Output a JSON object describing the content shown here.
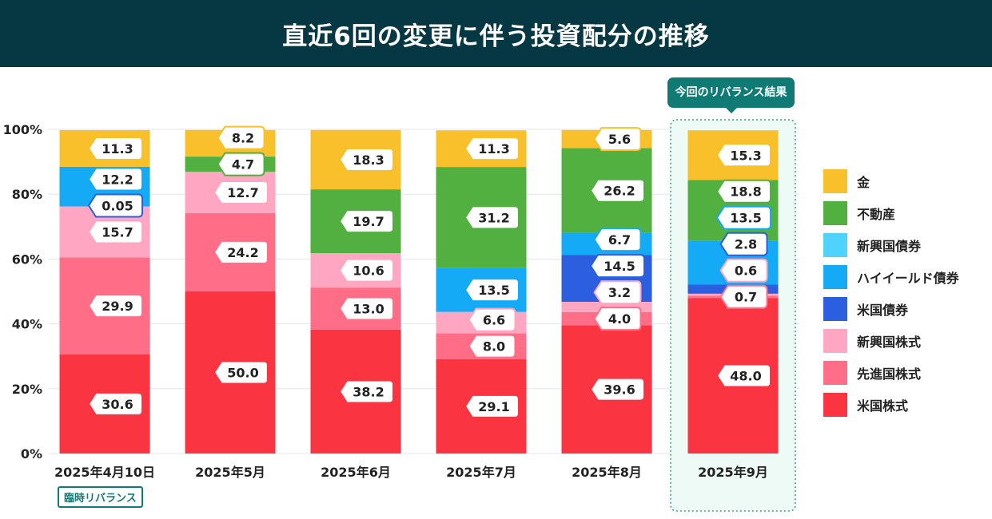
{
  "title": "直近6回の変更に伴う投資配分の推移",
  "highlight_label": "今回のリバランス結果",
  "temp_badge": "臨時リバランス",
  "chart_data": {
    "type": "bar",
    "stacked": true,
    "title": "直近6回の変更に伴う投資配分の推移",
    "categories": [
      "2025年4月10日",
      "2025年5月",
      "2025年6月",
      "2025年7月",
      "2025年8月",
      "2025年9月"
    ],
    "y_ticks": [
      "0%",
      "20%",
      "40%",
      "60%",
      "80%",
      "100%"
    ],
    "ylim": [
      0,
      100
    ],
    "grid": true,
    "legend_position": "right",
    "series": [
      {
        "name": "米国株式",
        "color": "#fa3441",
        "values": [
          30.6,
          50.0,
          38.2,
          29.1,
          39.6,
          48.0
        ],
        "labels": [
          "30.6",
          "50.0",
          "38.2",
          "29.1",
          "39.6",
          "48.0"
        ]
      },
      {
        "name": "先進国株式",
        "color": "#ff6e86",
        "values": [
          29.9,
          24.2,
          13.0,
          8.0,
          4.0,
          0.7
        ],
        "labels": [
          "29.9",
          "24.2",
          "13.0",
          "8.0",
          "4.0",
          "0.7"
        ]
      },
      {
        "name": "新興国株式",
        "color": "#ffa6c2",
        "values": [
          15.7,
          12.7,
          10.6,
          6.6,
          3.2,
          0.6
        ],
        "labels": [
          "15.7",
          "12.7",
          "10.6",
          "6.6",
          "3.2",
          "0.6"
        ]
      },
      {
        "name": "米国債券",
        "color": "#2b5fe0",
        "values": [
          0.05,
          0,
          0,
          0,
          14.5,
          2.8
        ],
        "labels": [
          "0.05",
          "",
          "",
          "",
          "14.5",
          "2.8"
        ]
      },
      {
        "name": "ハイイールド債券",
        "color": "#14aaf5",
        "values": [
          12.2,
          0,
          0,
          13.5,
          6.7,
          13.5
        ],
        "labels": [
          "12.2",
          "",
          "",
          "13.5",
          "6.7",
          "13.5"
        ]
      },
      {
        "name": "新興国債券",
        "color": "#4fd2fb",
        "values": [
          0,
          0,
          0,
          0,
          0,
          0
        ],
        "labels": [
          "",
          "",
          "",
          "",
          "",
          ""
        ]
      },
      {
        "name": "不動産",
        "color": "#52b041",
        "values": [
          0,
          4.7,
          19.7,
          31.2,
          26.2,
          18.8
        ],
        "labels": [
          "",
          "4.7",
          "19.7",
          "31.2",
          "26.2",
          "18.8"
        ]
      },
      {
        "name": "金",
        "color": "#f8c02b",
        "values": [
          11.3,
          8.2,
          18.3,
          11.3,
          5.6,
          15.3
        ],
        "labels": [
          "11.3",
          "8.2",
          "18.3",
          "11.3",
          "5.6",
          "15.3"
        ]
      }
    ],
    "legend": [
      "金",
      "不動産",
      "新興国債券",
      "ハイイールド債券",
      "米国債券",
      "新興国株式",
      "先進国株式",
      "米国株式"
    ]
  }
}
